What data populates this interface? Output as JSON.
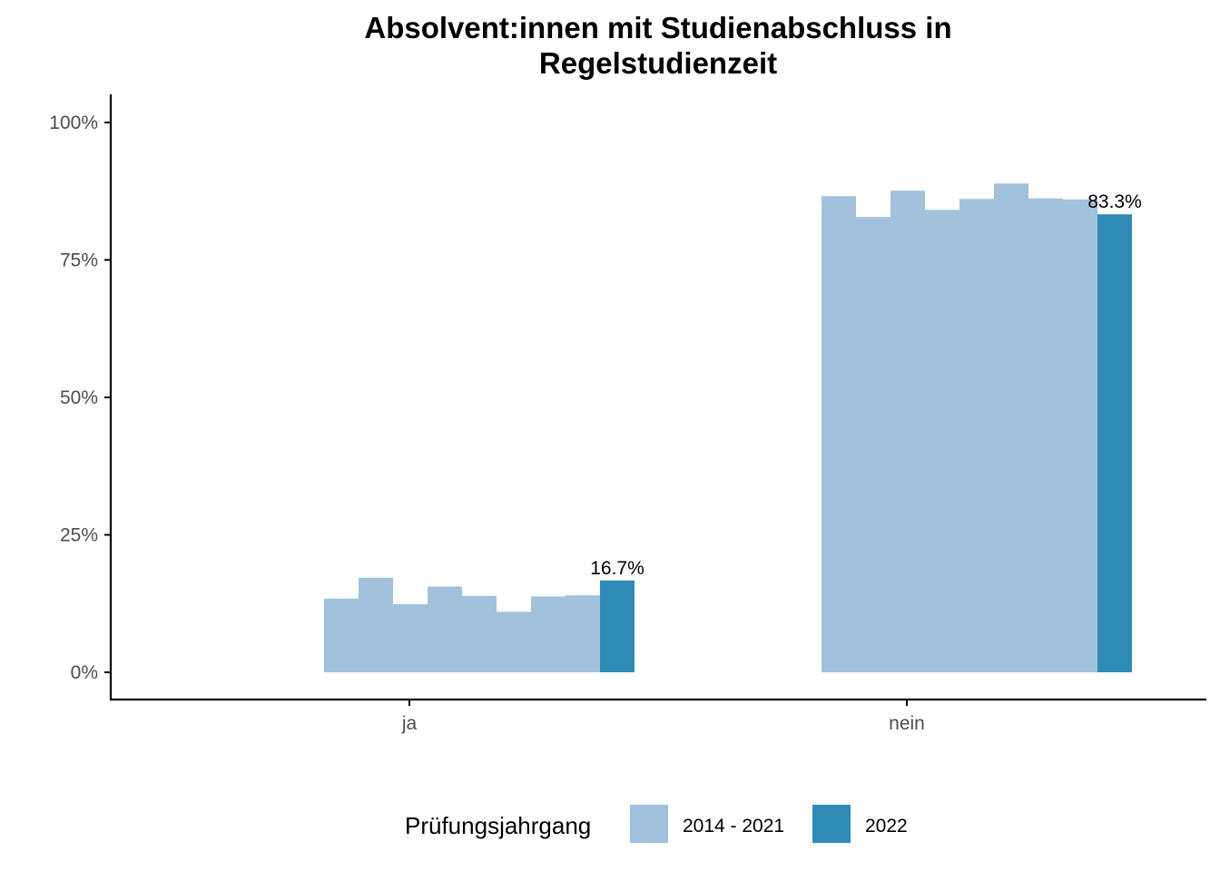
{
  "chart_data": {
    "type": "bar",
    "title": "Absolvent:innen mit Studienabschluss in Regelstudienzeit",
    "title_lines": [
      "Absolvent:innen mit Studienabschluss in",
      "Regelstudienzeit"
    ],
    "categories": [
      "ja",
      "nein"
    ],
    "ylim": [
      0,
      100
    ],
    "yticks": [
      0,
      25,
      50,
      75,
      100
    ],
    "ytick_labels": [
      "0%",
      "25%",
      "50%",
      "75%",
      "100%"
    ],
    "grid": false,
    "legend": {
      "title": "Prüfungsjahrgang",
      "position": "bottom",
      "entries": [
        {
          "label": "2014 - 2021",
          "color": "#a1c1dc"
        },
        {
          "label": "2022",
          "color": "#2e8bb8"
        }
      ]
    },
    "series": [
      {
        "name": "2014 - 2021",
        "color": "#a1c1dc",
        "values_by_year": {
          "ja": [
            13.4,
            17.2,
            12.4,
            15.6,
            13.9,
            11.0,
            13.8,
            14.0
          ],
          "nein": [
            86.6,
            82.8,
            87.6,
            84.1,
            86.1,
            88.9,
            86.2,
            86.0
          ]
        }
      },
      {
        "name": "2022",
        "color": "#2e8bb8",
        "values": [
          16.7,
          83.3
        ]
      }
    ],
    "data_labels": [
      "16.7%",
      "83.3%"
    ]
  }
}
